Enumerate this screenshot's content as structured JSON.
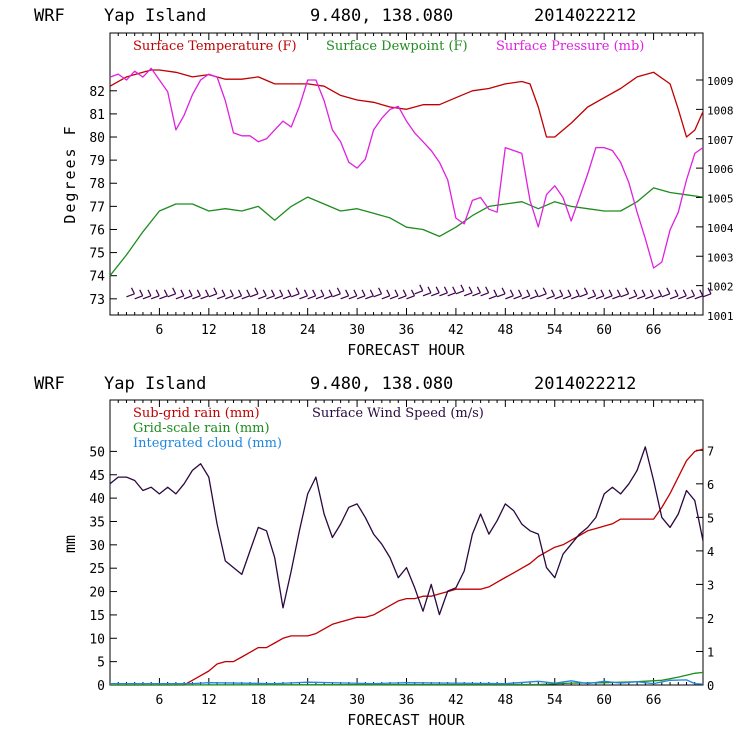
{
  "header": {
    "model": "WRF",
    "location": "Yap Island",
    "coords": "9.480, 138.080",
    "init": "2014022212"
  },
  "chart_data": [
    {
      "type": "line",
      "xlabel": "FORECAST HOUR",
      "ylabel": "Degrees F",
      "xlim": [
        0,
        72
      ],
      "ylim": [
        72.3,
        84.5
      ],
      "y2lim": [
        1001,
        1010.6
      ],
      "xticks": [
        6,
        12,
        18,
        24,
        30,
        36,
        42,
        48,
        54,
        60,
        66
      ],
      "xtick_labels": [
        "6",
        "12",
        "18",
        "24",
        "30",
        "36",
        "42",
        "48",
        "54",
        "60",
        "66"
      ],
      "yticks": [
        73,
        74,
        75,
        76,
        77,
        78,
        79,
        80,
        81,
        82
      ],
      "ytick_labels": [
        "73",
        "74",
        "75",
        "76",
        "77",
        "78",
        "79",
        "80",
        "81",
        "82"
      ],
      "y2ticks": [
        1001,
        1002,
        1003,
        1004,
        1005,
        1006,
        1007,
        1008,
        1009
      ],
      "y2tick_labels": [
        "1001",
        "1002",
        "1003",
        "1004",
        "1005",
        "1006",
        "1007",
        "1008",
        "1009"
      ],
      "series": [
        {
          "name": "Surface Temperature (F)",
          "color": "#c00000",
          "axis": "left",
          "x": [
            0,
            2,
            4,
            5,
            6,
            8,
            10,
            12,
            14,
            16,
            18,
            20,
            22,
            24,
            26,
            28,
            30,
            32,
            34,
            36,
            38,
            40,
            42,
            44,
            46,
            48,
            50,
            51,
            52,
            53,
            54,
            56,
            58,
            60,
            62,
            64,
            66,
            68,
            69,
            70,
            71,
            72
          ],
          "y": [
            82.2,
            82.6,
            82.8,
            82.9,
            82.9,
            82.8,
            82.6,
            82.7,
            82.5,
            82.5,
            82.6,
            82.3,
            82.3,
            82.3,
            82.2,
            81.8,
            81.6,
            81.5,
            81.3,
            81.2,
            81.4,
            81.4,
            81.7,
            82.0,
            82.1,
            82.3,
            82.4,
            82.3,
            81.3,
            80.0,
            80.0,
            80.6,
            81.3,
            81.7,
            82.1,
            82.6,
            82.8,
            82.3,
            81.2,
            80.0,
            80.3,
            81.1
          ]
        },
        {
          "name": "Surface Dewpoint (F)",
          "color": "#1e8c1e",
          "axis": "left",
          "x": [
            0,
            2,
            4,
            6,
            8,
            10,
            12,
            14,
            16,
            18,
            20,
            22,
            24,
            26,
            28,
            30,
            32,
            34,
            36,
            38,
            40,
            42,
            44,
            46,
            48,
            50,
            52,
            54,
            56,
            58,
            60,
            62,
            64,
            66,
            68,
            70,
            72
          ],
          "y": [
            74.0,
            74.9,
            75.9,
            76.8,
            77.1,
            77.1,
            76.8,
            76.9,
            76.8,
            77.0,
            76.4,
            77.0,
            77.4,
            77.1,
            76.8,
            76.9,
            76.7,
            76.5,
            76.1,
            76.0,
            75.7,
            76.1,
            76.6,
            77.0,
            77.1,
            77.2,
            76.9,
            77.2,
            77.0,
            76.9,
            76.8,
            76.8,
            77.2,
            77.8,
            77.6,
            77.5,
            77.4
          ]
        },
        {
          "name": "Surface Pressure (mb)",
          "color": "#e020e0",
          "axis": "right",
          "x": [
            0,
            1,
            2,
            3,
            4,
            5,
            6,
            7,
            8,
            9,
            10,
            11,
            12,
            13,
            14,
            15,
            16,
            17,
            18,
            19,
            20,
            21,
            22,
            23,
            24,
            25,
            26,
            27,
            28,
            29,
            30,
            31,
            32,
            33,
            34,
            35,
            36,
            37,
            38,
            39,
            40,
            41,
            42,
            43,
            44,
            45,
            46,
            47,
            48,
            49,
            50,
            51,
            52,
            53,
            54,
            55,
            56,
            57,
            58,
            59,
            60,
            61,
            62,
            63,
            64,
            65,
            66,
            67,
            68,
            69,
            70,
            71,
            72
          ],
          "y": [
            1009.1,
            1009.2,
            1009.0,
            1009.3,
            1009.1,
            1009.4,
            1009.0,
            1008.6,
            1007.3,
            1007.8,
            1008.5,
            1009.0,
            1009.2,
            1009.1,
            1008.3,
            1007.2,
            1007.1,
            1007.1,
            1006.9,
            1007.0,
            1007.3,
            1007.6,
            1007.4,
            1008.1,
            1009.0,
            1009.0,
            1008.3,
            1007.3,
            1006.9,
            1006.2,
            1006.0,
            1006.3,
            1007.3,
            1007.7,
            1008.0,
            1008.1,
            1007.6,
            1007.2,
            1006.9,
            1006.6,
            1006.2,
            1005.6,
            1004.3,
            1004.1,
            1004.9,
            1005.0,
            1004.6,
            1004.5,
            1006.7,
            1006.6,
            1006.5,
            1004.9,
            1004.0,
            1005.1,
            1005.4,
            1005.0,
            1004.2,
            1005.0,
            1005.8,
            1006.7,
            1006.7,
            1006.6,
            1006.2,
            1005.5,
            1004.5,
            1003.6,
            1002.6,
            1002.8,
            1003.9,
            1004.5,
            1005.6,
            1006.5,
            1006.7
          ]
        }
      ],
      "wind_barbs": {
        "color": "#400050",
        "hours": [
          2,
          3,
          4,
          5,
          6,
          7,
          8,
          9,
          10,
          11,
          12,
          13,
          14,
          15,
          16,
          17,
          18,
          19,
          20,
          21,
          22,
          23,
          24,
          25,
          26,
          27,
          28,
          29,
          30,
          31,
          32,
          33,
          34,
          35,
          36,
          37,
          38,
          39,
          40,
          41,
          42,
          43,
          44,
          45,
          46,
          47,
          48,
          49,
          50,
          51,
          52,
          53,
          54,
          55,
          56,
          57,
          58,
          59,
          60,
          61,
          62,
          63,
          64,
          65,
          66,
          67,
          68,
          69,
          70,
          71,
          72
        ]
      }
    },
    {
      "type": "line",
      "xlabel": "FORECAST HOUR",
      "ylabel": "mm",
      "xlim": [
        0,
        72
      ],
      "ylim": [
        0,
        61
      ],
      "y2lim": [
        0,
        8.5
      ],
      "xticks": [
        6,
        12,
        18,
        24,
        30,
        36,
        42,
        48,
        54,
        60,
        66
      ],
      "xtick_labels": [
        "6",
        "12",
        "18",
        "24",
        "30",
        "36",
        "42",
        "48",
        "54",
        "60",
        "66"
      ],
      "yticks": [
        0,
        5,
        10,
        15,
        20,
        25,
        30,
        35,
        40,
        45,
        50
      ],
      "ytick_labels": [
        "0",
        "5",
        "10",
        "15",
        "20",
        "25",
        "30",
        "35",
        "40",
        "45",
        "50"
      ],
      "y2ticks": [
        0,
        1,
        2,
        3,
        4,
        5,
        6,
        7
      ],
      "y2tick_labels": [
        "0",
        "1",
        "2",
        "3",
        "4",
        "5",
        "6",
        "7"
      ],
      "series": [
        {
          "name": "Sub-grid rain (mm)",
          "color": "#c00000",
          "axis": "left",
          "x": [
            0,
            9,
            10,
            11,
            12,
            13,
            14,
            15,
            16,
            17,
            18,
            19,
            20,
            21,
            22,
            23,
            24,
            25,
            26,
            27,
            28,
            29,
            30,
            31,
            32,
            33,
            34,
            35,
            36,
            37,
            38,
            39,
            40,
            41,
            42,
            43,
            44,
            45,
            46,
            47,
            48,
            49,
            50,
            51,
            52,
            53,
            54,
            55,
            56,
            57,
            58,
            59,
            60,
            61,
            62,
            63,
            64,
            65,
            66,
            67,
            68,
            69,
            70,
            71,
            72
          ],
          "y": [
            0,
            0,
            1,
            2,
            3,
            4.5,
            5,
            5,
            6,
            7,
            8,
            8,
            9,
            10,
            10.5,
            10.5,
            10.5,
            11,
            12,
            13,
            13.5,
            14,
            14.5,
            14.5,
            15,
            16,
            17,
            18,
            18.5,
            18.5,
            19,
            19,
            19.5,
            20,
            20.5,
            20.5,
            20.5,
            20.5,
            21,
            22,
            23,
            24,
            25,
            26,
            27.5,
            28.5,
            29.5,
            30,
            31,
            32,
            33,
            33.5,
            34,
            34.5,
            35.5,
            35.5,
            35.5,
            35.5,
            35.5,
            38,
            41,
            44.5,
            48,
            50,
            50.5
          ]
        },
        {
          "name": "Grid-scale rain (mm)",
          "color": "#1e8c1e",
          "axis": "left",
          "x": [
            0,
            52,
            56,
            60,
            64,
            67,
            69,
            71,
            72
          ],
          "y": [
            0,
            0.1,
            0.4,
            0.5,
            0.7,
            1.0,
            1.7,
            2.5,
            2.7
          ]
        },
        {
          "name": "Integrated cloud (mm)",
          "color": "#1e88e0",
          "axis": "left",
          "x": [
            0,
            10,
            12,
            20,
            24,
            32,
            36,
            48,
            52,
            54,
            56,
            58,
            60,
            62,
            64,
            66,
            68,
            70,
            71,
            72
          ],
          "y": [
            0.3,
            0.3,
            0.5,
            0.3,
            0.6,
            0.3,
            0.5,
            0.3,
            0.8,
            0.4,
            0.9,
            0.3,
            0.8,
            0.4,
            0.7,
            0.3,
            1.0,
            1.1,
            0.3,
            0.2
          ]
        },
        {
          "name": "Surface Wind Speed (m/s)",
          "color": "#2a0840",
          "axis": "right",
          "x": [
            0,
            1,
            2,
            3,
            4,
            5,
            6,
            7,
            8,
            9,
            10,
            11,
            12,
            13,
            14,
            15,
            16,
            17,
            18,
            19,
            20,
            21,
            22,
            23,
            24,
            25,
            26,
            27,
            28,
            29,
            30,
            31,
            32,
            33,
            34,
            35,
            36,
            37,
            38,
            39,
            40,
            41,
            42,
            43,
            44,
            45,
            46,
            47,
            48,
            49,
            50,
            51,
            52,
            53,
            54,
            55,
            56,
            57,
            58,
            59,
            60,
            61,
            62,
            63,
            64,
            65,
            66,
            67,
            68,
            69,
            70,
            71,
            72
          ],
          "y": [
            6.0,
            6.2,
            6.2,
            6.1,
            5.8,
            5.9,
            5.7,
            5.9,
            5.7,
            6.0,
            6.4,
            6.6,
            6.2,
            4.8,
            3.7,
            3.5,
            3.3,
            4.0,
            4.7,
            4.6,
            3.8,
            2.3,
            3.4,
            4.6,
            5.7,
            6.2,
            5.1,
            4.4,
            4.8,
            5.3,
            5.4,
            5.0,
            4.5,
            4.2,
            3.8,
            3.2,
            3.5,
            2.9,
            2.2,
            3.0,
            2.1,
            2.8,
            2.9,
            3.4,
            4.5,
            5.1,
            4.5,
            4.9,
            5.4,
            5.2,
            4.8,
            4.6,
            4.5,
            3.5,
            3.2,
            3.9,
            4.2,
            4.5,
            4.7,
            5.0,
            5.7,
            5.9,
            5.7,
            6.0,
            6.4,
            7.1,
            6.1,
            5.0,
            4.7,
            5.1,
            5.8,
            5.5,
            4.3
          ]
        }
      ]
    }
  ]
}
